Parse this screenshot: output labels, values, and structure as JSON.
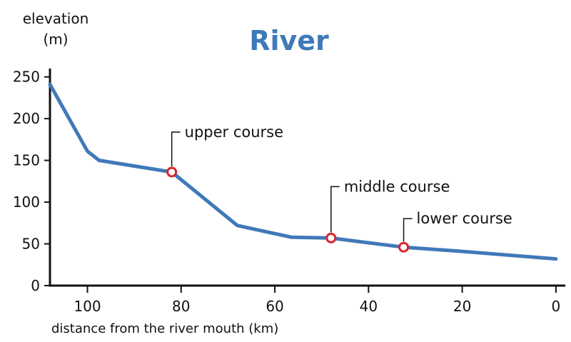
{
  "chart_data": {
    "type": "line",
    "title": "River",
    "ylabel_line1": "elevation",
    "ylabel_line2": "(m)",
    "xlabel": "distance from the river mouth (km)",
    "xlim": [
      108,
      -2
    ],
    "ylim": [
      0,
      260
    ],
    "x_ticks": [
      100,
      80,
      60,
      40,
      20,
      0
    ],
    "y_ticks": [
      0,
      50,
      100,
      150,
      200,
      250
    ],
    "series": [
      {
        "color": "#4079b8",
        "points": [
          {
            "x": 108,
            "y": 241
          },
          {
            "x": 100,
            "y": 161
          },
          {
            "x": 97.5,
            "y": 150
          },
          {
            "x": 82,
            "y": 136
          },
          {
            "x": 68,
            "y": 72
          },
          {
            "x": 56.5,
            "y": 58
          },
          {
            "x": 48,
            "y": 57
          },
          {
            "x": 32.5,
            "y": 46
          },
          {
            "x": 20,
            "y": 41
          },
          {
            "x": 0,
            "y": 32
          }
        ]
      }
    ],
    "annotations": [
      {
        "label": "upper course",
        "x": 82,
        "y": 136
      },
      {
        "label": "middle course",
        "x": 48,
        "y": 57
      },
      {
        "label": "lower course",
        "x": 32.5,
        "y": 46
      }
    ],
    "marker_color": "#d7262c",
    "grid": false
  }
}
